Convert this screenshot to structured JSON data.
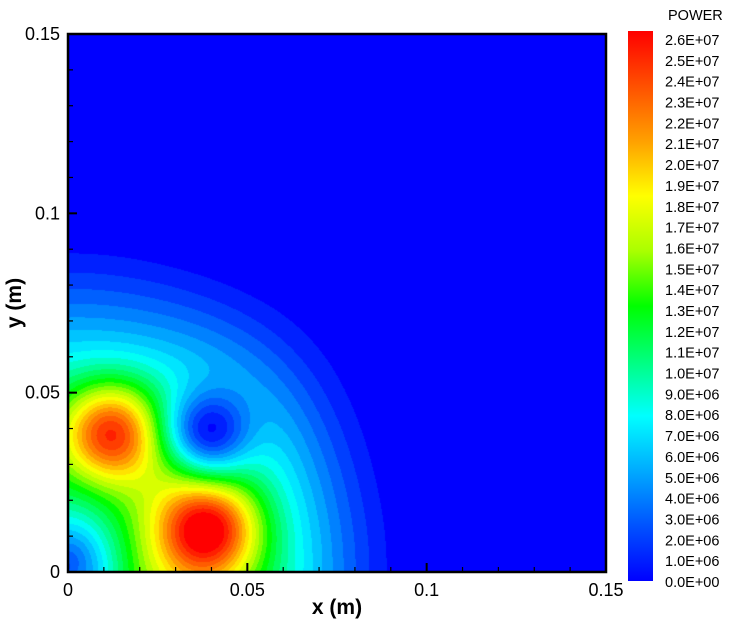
{
  "chart_data": {
    "type": "heatmap",
    "title": "",
    "xlabel": "x (m)",
    "ylabel": "y (m)",
    "xlim": [
      0,
      0.15
    ],
    "ylim": [
      0,
      0.15
    ],
    "x_ticks": [
      "0",
      "0.05",
      "0.1",
      "0.15"
    ],
    "x_tick_values": [
      0,
      0.05,
      0.1,
      0.15
    ],
    "y_ticks": [
      "0",
      "0.05",
      "0.1",
      "0.15"
    ],
    "y_tick_values": [
      0,
      0.05,
      0.1,
      0.15
    ],
    "colorbar": {
      "title": "POWER",
      "min": 0,
      "max": 26000000,
      "labels": [
        "2.6E+07",
        "2.5E+07",
        "2.4E+07",
        "2.3E+07",
        "2.2E+07",
        "2.1E+07",
        "2.0E+07",
        "1.9E+07",
        "1.8E+07",
        "1.7E+07",
        "1.6E+07",
        "1.5E+07",
        "1.4E+07",
        "1.3E+07",
        "1.2E+07",
        "1.1E+07",
        "1.0E+07",
        "9.0E+06",
        "8.0E+06",
        "7.0E+06",
        "6.0E+06",
        "5.0E+06",
        "4.0E+06",
        "3.0E+06",
        "2.0E+06",
        "1.0E+06",
        "0.0E+00"
      ],
      "colors": [
        "#0000ff",
        "#0052ff",
        "#00aaff",
        "#00ffff",
        "#00ff7f",
        "#00ff00",
        "#aaff00",
        "#ffff00",
        "#ffa000",
        "#ff5000",
        "#ff0000"
      ]
    },
    "features": {
      "hot_spots": [
        {
          "x": 0.012,
          "y": 0.039,
          "value": 26000000
        },
        {
          "x": 0.039,
          "y": 0.012,
          "value": 26000000
        }
      ],
      "cold_spot": {
        "x": 0.04,
        "y": 0.04,
        "value": 3000000
      },
      "corner_min": {
        "x": 0.0,
        "y": 0.0,
        "value": 6000000
      },
      "decay_radius": 0.1
    }
  }
}
